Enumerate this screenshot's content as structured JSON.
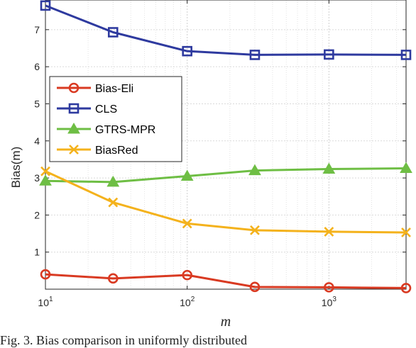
{
  "chart_data": {
    "type": "line",
    "xscale": "log",
    "xlabel": "m",
    "ylabel": "Bias(m)",
    "xlim": [
      10,
      3500
    ],
    "ylim": [
      0,
      7.8
    ],
    "y_ticks": [
      1,
      2,
      3,
      4,
      5,
      6,
      7
    ],
    "x_ticks": [
      {
        "value": 10,
        "base": "10",
        "exp": "1"
      },
      {
        "value": 100,
        "base": "10",
        "exp": "2"
      },
      {
        "value": 1000,
        "base": "10",
        "exp": "3"
      }
    ],
    "grid": true,
    "legend_position": "left",
    "x": [
      10,
      30,
      100,
      300,
      1000,
      3500
    ],
    "series": [
      {
        "name": "Bias-Eli",
        "color": "#d93a22",
        "marker": "circle",
        "values": [
          0.4,
          0.29,
          0.38,
          0.06,
          0.05,
          0.03
        ]
      },
      {
        "name": "CLS",
        "color": "#2e3a9f",
        "marker": "square",
        "values": [
          7.65,
          6.93,
          6.42,
          6.32,
          6.33,
          6.32
        ]
      },
      {
        "name": "GTRS-MPR",
        "color": "#6ebe44",
        "marker": "triangle",
        "values": [
          2.92,
          2.89,
          3.05,
          3.2,
          3.24,
          3.26
        ]
      },
      {
        "name": "BiasRed",
        "color": "#f4b21c",
        "marker": "x",
        "values": [
          3.18,
          2.34,
          1.77,
          1.59,
          1.55,
          1.53
        ]
      }
    ]
  },
  "caption": "Fig. 3.  Bias comparison in uniformly distributed"
}
